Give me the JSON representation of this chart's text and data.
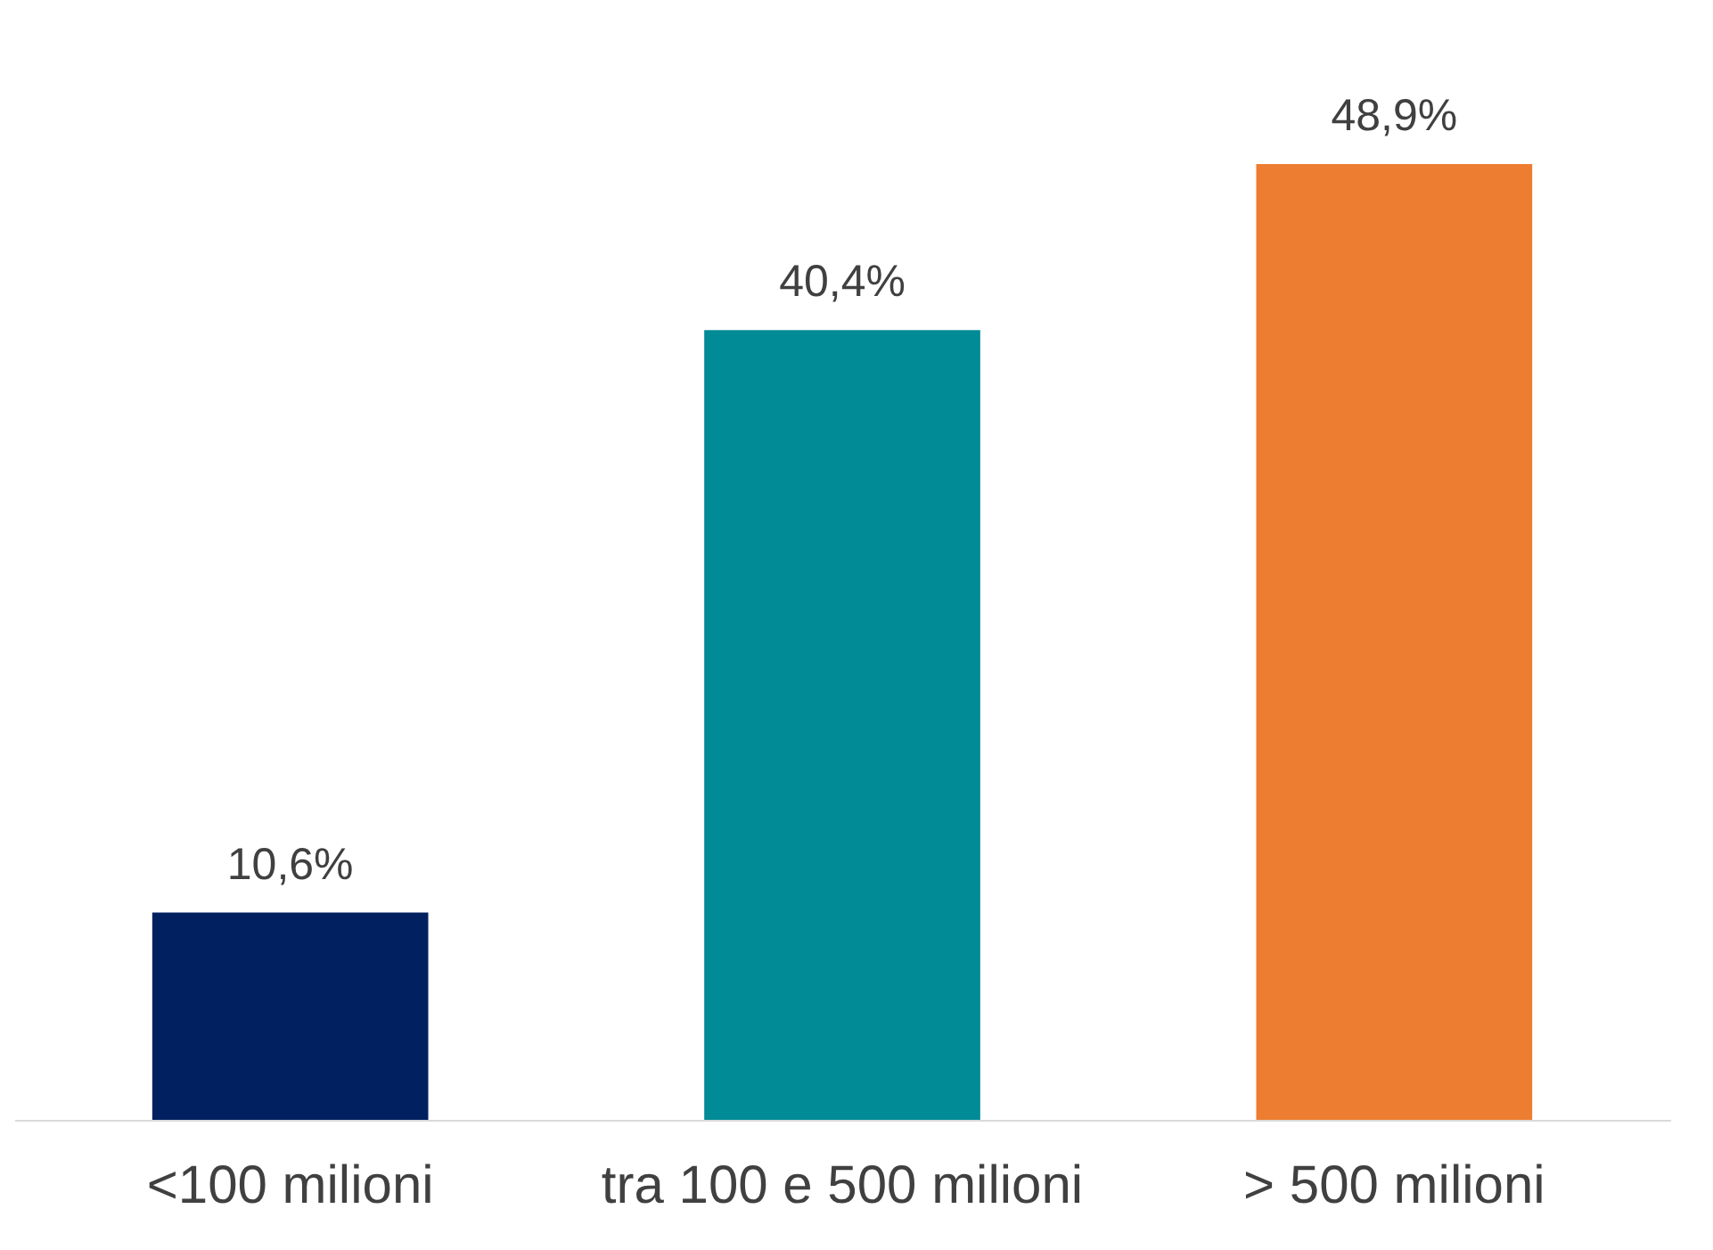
{
  "chart_data": {
    "type": "bar",
    "categories": [
      "<100 milioni",
      "tra 100 e 500 milioni",
      "> 500 milioni"
    ],
    "values": [
      10.6,
      40.4,
      48.9
    ],
    "colors": [
      "#002060",
      "#008b96",
      "#ed7d31"
    ],
    "value_labels": [
      "10,6%",
      "40,4%",
      "48,9%"
    ],
    "grid": false
  }
}
